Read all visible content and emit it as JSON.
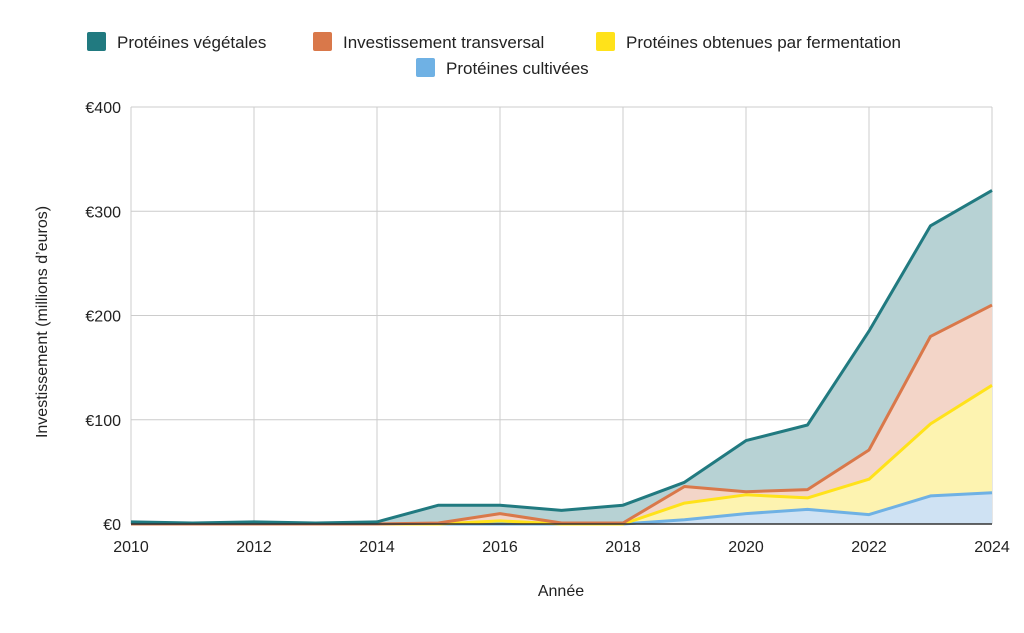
{
  "chart_data": {
    "type": "area",
    "stacked": true,
    "xlabel": "Année",
    "ylabel": "Investissement (millions d’euros)",
    "x": [
      2010,
      2011,
      2012,
      2013,
      2014,
      2015,
      2016,
      2017,
      2018,
      2019,
      2020,
      2021,
      2022,
      2023,
      2024
    ],
    "xticks": [
      "2010",
      "2012",
      "2014",
      "2016",
      "2018",
      "2020",
      "2022",
      "2024"
    ],
    "xtick_values": [
      2010,
      2012,
      2014,
      2016,
      2018,
      2020,
      2022,
      2024
    ],
    "ylim": [
      0,
      400
    ],
    "yticks": [
      "€0",
      "€100",
      "€200",
      "€300",
      "€400"
    ],
    "ytick_values": [
      0,
      100,
      200,
      300,
      400
    ],
    "grid": true,
    "legend_position": "top",
    "series": [
      {
        "name": "Protéines cultivées",
        "color": "#6fb1e4",
        "fill": "#cfe2f3",
        "values": [
          0,
          0,
          0,
          0,
          0,
          0,
          0,
          0,
          0,
          4,
          10,
          14,
          9,
          27,
          30
        ]
      },
      {
        "name": "Protéines obtenues par fermentation",
        "color": "#ffe21a",
        "fill": "#fdf3b0",
        "values": [
          0,
          0,
          0,
          0,
          0,
          0,
          3,
          0,
          0,
          16,
          18,
          11,
          34,
          69,
          103
        ]
      },
      {
        "name": "Investissement transversal",
        "color": "#d9784a",
        "fill": "#f3d5c8",
        "values": [
          0,
          0,
          0,
          0,
          0,
          1,
          7,
          1,
          1,
          16,
          3,
          8,
          28,
          84,
          77
        ]
      },
      {
        "name": "Protéines végétales",
        "color": "#217a80",
        "fill": "#b7d2d4",
        "values": [
          2,
          1,
          2,
          1,
          2,
          17,
          8,
          12,
          17,
          4,
          49,
          62,
          114,
          106,
          110
        ]
      }
    ],
    "legend_order": [
      "Protéines végétales",
      "Investissement transversal",
      "Protéines obtenues par fermentation",
      "Protéines cultivées"
    ]
  }
}
